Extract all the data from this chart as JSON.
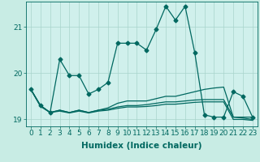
{
  "xlabel": "Humidex (Indice chaleur)",
  "ylabel": "",
  "background_color": "#c8ece4",
  "plot_bg_color": "#d0f0ec",
  "grid_color": "#a8d4cc",
  "line_color": "#006860",
  "xlim": [
    -0.5,
    23.5
  ],
  "ylim": [
    18.85,
    21.55
  ],
  "yticks": [
    19,
    20,
    21
  ],
  "xticks": [
    0,
    1,
    2,
    3,
    4,
    5,
    6,
    7,
    8,
    9,
    10,
    11,
    12,
    13,
    14,
    15,
    16,
    17,
    18,
    19,
    20,
    21,
    22,
    23
  ],
  "series": [
    [
      19.65,
      19.3,
      19.15,
      20.3,
      19.95,
      19.95,
      19.55,
      19.65,
      19.8,
      20.65,
      20.65,
      20.65,
      20.5,
      20.95,
      21.45,
      21.15,
      21.45,
      20.45,
      19.1,
      19.05,
      19.05,
      19.6,
      19.5,
      19.05
    ],
    [
      19.65,
      19.3,
      19.15,
      19.2,
      19.15,
      19.2,
      19.15,
      19.2,
      19.25,
      19.35,
      19.4,
      19.4,
      19.4,
      19.45,
      19.5,
      19.5,
      19.55,
      19.6,
      19.65,
      19.68,
      19.7,
      19.05,
      19.05,
      19.05
    ],
    [
      19.65,
      19.3,
      19.15,
      19.2,
      19.15,
      19.2,
      19.15,
      19.2,
      19.22,
      19.27,
      19.3,
      19.3,
      19.32,
      19.35,
      19.38,
      19.38,
      19.4,
      19.42,
      19.43,
      19.43,
      19.43,
      19.05,
      19.03,
      19.0
    ],
    [
      19.65,
      19.28,
      19.15,
      19.18,
      19.14,
      19.18,
      19.14,
      19.18,
      19.2,
      19.24,
      19.27,
      19.27,
      19.28,
      19.3,
      19.33,
      19.33,
      19.35,
      19.37,
      19.38,
      19.38,
      19.38,
      19.0,
      19.0,
      18.98
    ]
  ],
  "marker": "D",
  "markersize": 2.5,
  "linewidth": 0.9,
  "fontsize": 7.5,
  "tick_fontsize": 6.5
}
